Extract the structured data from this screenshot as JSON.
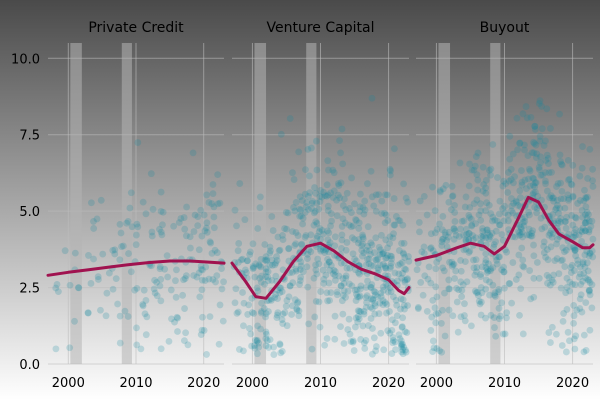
{
  "colors": {
    "background_top": "#4a4a4a",
    "background_bottom": "#ffffff",
    "points": "#138a9e",
    "smooth_line": "#a0124f",
    "recession_band": "#b4b4b4",
    "grid": "#bdbdbd"
  },
  "chart_data": {
    "type": "scatter",
    "layout": "small multiples (3 panels, shared y axis)",
    "x_ticks": [
      2000,
      2010,
      2020
    ],
    "y_ticks": [
      "0.0",
      "2.5",
      "5.0",
      "7.5",
      "10.0"
    ],
    "xlim": [
      1997,
      2023
    ],
    "ylim": [
      0,
      10.5
    ],
    "grid": true,
    "shaded_periods": [
      [
        2000.3,
        2002.0
      ],
      [
        2007.9,
        2009.4
      ]
    ],
    "panels": [
      {
        "title": "Private Credit",
        "point_density": "sparse",
        "trend": [
          {
            "x": 1997,
            "y": 2.9
          },
          {
            "x": 2000,
            "y": 3.0
          },
          {
            "x": 2003,
            "y": 3.08
          },
          {
            "x": 2006,
            "y": 3.17
          },
          {
            "x": 2009,
            "y": 3.25
          },
          {
            "x": 2012,
            "y": 3.32
          },
          {
            "x": 2015,
            "y": 3.37
          },
          {
            "x": 2018,
            "y": 3.37
          },
          {
            "x": 2021,
            "y": 3.33
          },
          {
            "x": 2023,
            "y": 3.3
          }
        ]
      },
      {
        "title": "Venture Capital",
        "point_density": "dense",
        "trend": [
          {
            "x": 1997,
            "y": 3.3
          },
          {
            "x": 1999,
            "y": 2.7
          },
          {
            "x": 2000.5,
            "y": 2.2
          },
          {
            "x": 2002,
            "y": 2.15
          },
          {
            "x": 2004,
            "y": 2.7
          },
          {
            "x": 2006,
            "y": 3.35
          },
          {
            "x": 2008,
            "y": 3.85
          },
          {
            "x": 2010,
            "y": 3.95
          },
          {
            "x": 2012,
            "y": 3.7
          },
          {
            "x": 2014,
            "y": 3.35
          },
          {
            "x": 2016,
            "y": 3.1
          },
          {
            "x": 2018,
            "y": 2.95
          },
          {
            "x": 2020,
            "y": 2.75
          },
          {
            "x": 2021.5,
            "y": 2.4
          },
          {
            "x": 2022.3,
            "y": 2.3
          },
          {
            "x": 2023,
            "y": 2.5
          }
        ]
      },
      {
        "title": "Buyout",
        "point_density": "dense",
        "trend": [
          {
            "x": 1997,
            "y": 3.4
          },
          {
            "x": 2000,
            "y": 3.55
          },
          {
            "x": 2003,
            "y": 3.8
          },
          {
            "x": 2005,
            "y": 3.95
          },
          {
            "x": 2007,
            "y": 3.85
          },
          {
            "x": 2008.5,
            "y": 3.6
          },
          {
            "x": 2010,
            "y": 3.85
          },
          {
            "x": 2012,
            "y": 4.75
          },
          {
            "x": 2013.5,
            "y": 5.45
          },
          {
            "x": 2015,
            "y": 5.3
          },
          {
            "x": 2016.5,
            "y": 4.7
          },
          {
            "x": 2018,
            "y": 4.25
          },
          {
            "x": 2020,
            "y": 4.0
          },
          {
            "x": 2021.5,
            "y": 3.8
          },
          {
            "x": 2022.5,
            "y": 3.8
          },
          {
            "x": 2023,
            "y": 3.9
          }
        ]
      }
    ]
  }
}
